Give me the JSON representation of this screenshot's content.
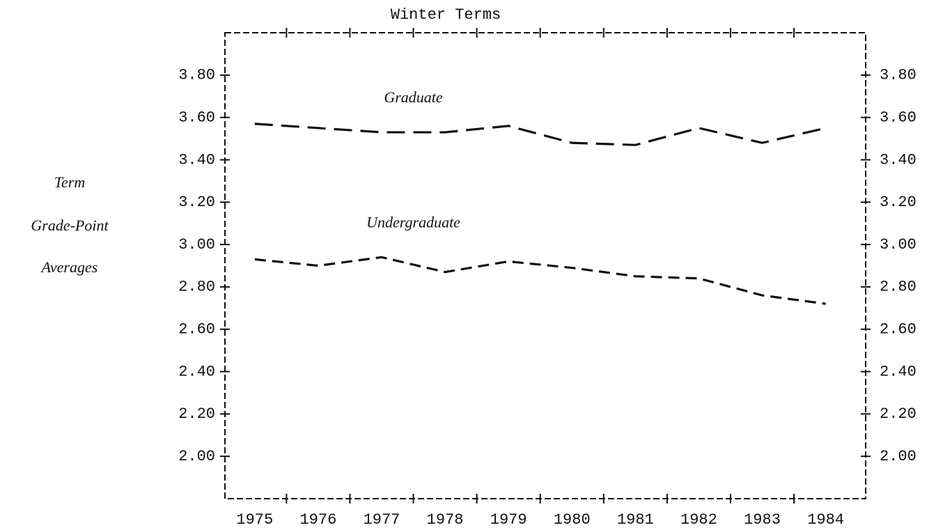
{
  "chart_data": {
    "type": "line",
    "title": "Winter Terms",
    "y_label": [
      "Term",
      "Grade-Point",
      "Averages"
    ],
    "x": [
      1975,
      1976,
      1977,
      1978,
      1979,
      1980,
      1981,
      1982,
      1983,
      1984
    ],
    "xlim": [
      1974.53,
      1984.63
    ],
    "xticks": [
      1975,
      1976,
      1977,
      1978,
      1979,
      1980,
      1981,
      1982,
      1983,
      1984
    ],
    "minor_xticks": [
      1975.5,
      1976.5,
      1977.5,
      1978.5,
      1979.5,
      1980.5,
      1981.5,
      1982.5,
      1983.5
    ],
    "ylim": [
      1.8,
      4.0
    ],
    "yticks": [
      {
        "value": 3.8,
        "label": "3.80"
      },
      {
        "value": 3.6,
        "label": "3.60"
      },
      {
        "value": 3.4,
        "label": "3.40"
      },
      {
        "value": 3.2,
        "label": "3.20"
      },
      {
        "value": 3.0,
        "label": "3.00"
      },
      {
        "value": 2.8,
        "label": "2.80"
      },
      {
        "value": 2.6,
        "label": "2.60"
      },
      {
        "value": 2.4,
        "label": "2.40"
      },
      {
        "value": 2.2,
        "label": "2.20"
      },
      {
        "value": 2.0,
        "label": "2.00"
      }
    ],
    "y2lim": [
      1.8,
      4.0
    ],
    "y2ticks": [
      {
        "value": 3.8,
        "label": "3.80"
      },
      {
        "value": 3.6,
        "label": "3.60"
      },
      {
        "value": 3.4,
        "label": "3.40"
      },
      {
        "value": 3.2,
        "label": "3.20"
      },
      {
        "value": 3.0,
        "label": "3.00"
      },
      {
        "value": 2.8,
        "label": "2.80"
      },
      {
        "value": 2.6,
        "label": "2.60"
      },
      {
        "value": 2.4,
        "label": "2.40"
      },
      {
        "value": 2.2,
        "label": "2.20"
      },
      {
        "value": 2.0,
        "label": "2.00"
      }
    ],
    "series": [
      {
        "name": "Graduate",
        "color": "#111111",
        "dash": "long",
        "values": [
          3.57,
          3.55,
          3.53,
          3.53,
          3.56,
          3.48,
          3.47,
          3.55,
          3.48,
          3.55
        ]
      },
      {
        "name": "Undergraduate",
        "color": "#111111",
        "dash": "short",
        "values": [
          2.93,
          2.9,
          2.94,
          2.87,
          2.92,
          2.89,
          2.85,
          2.84,
          2.76,
          2.72
        ]
      }
    ]
  }
}
